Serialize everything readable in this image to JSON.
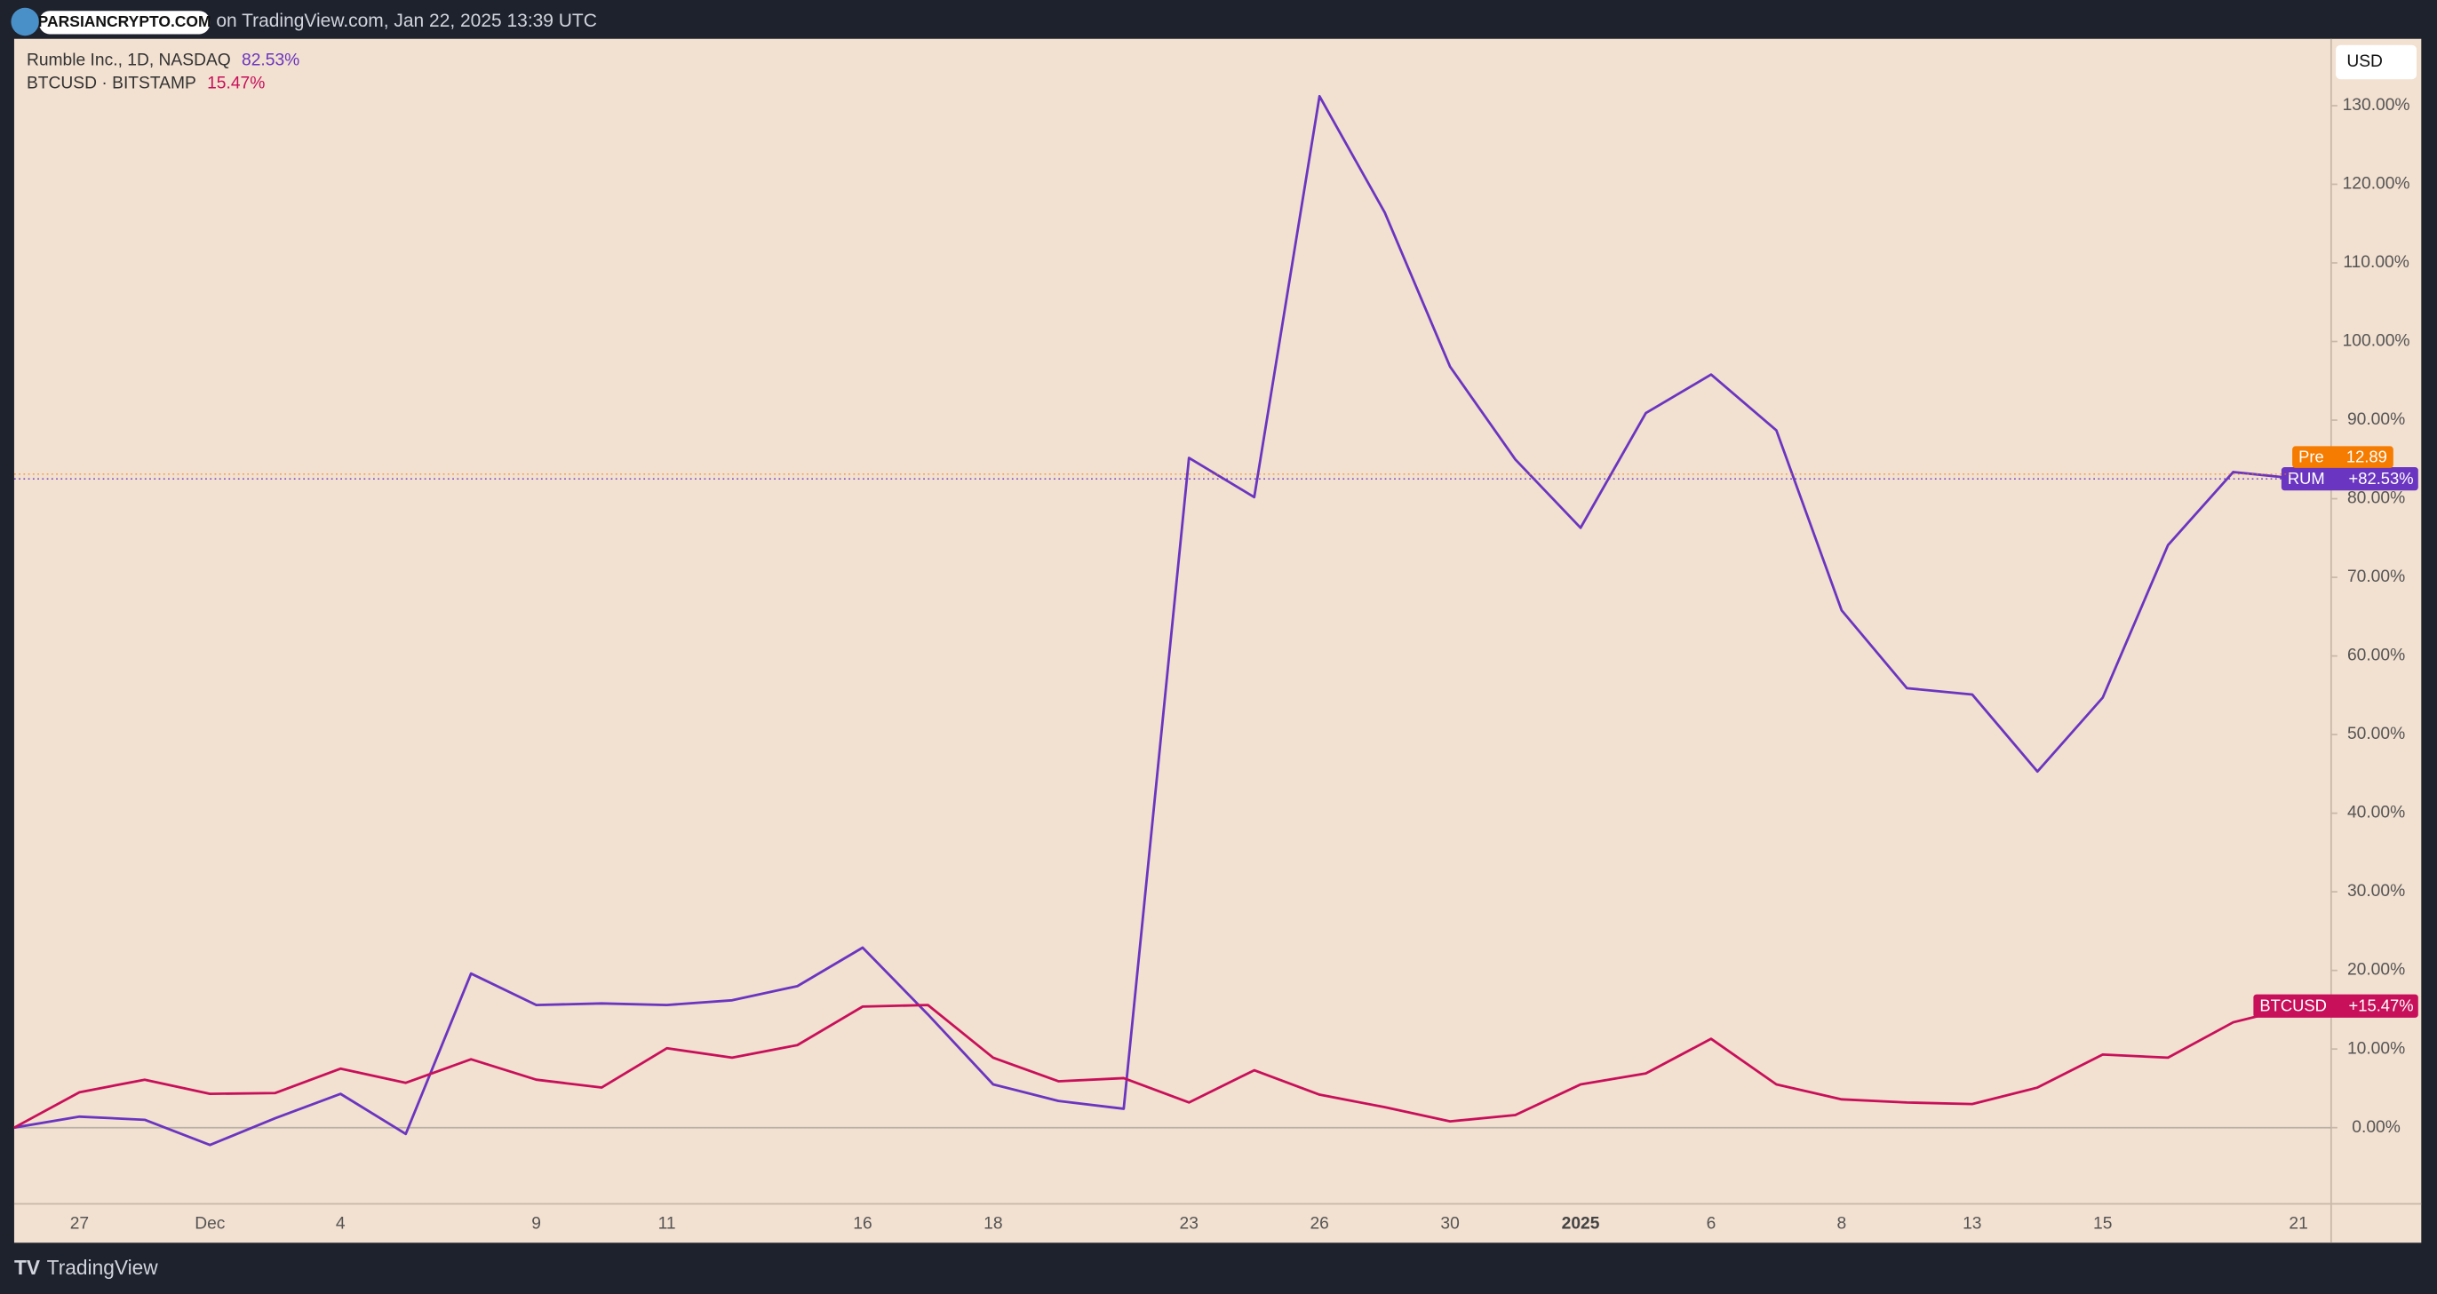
{
  "chart_data": {
    "type": "line",
    "watermark": "PARSIANCRYPTO.COM",
    "header": "on TradingView.com, Jan 22, 2025 13:39 UTC",
    "currency": "USD",
    "footer": "TradingView",
    "categories": [
      null,
      "27",
      null,
      "Dec",
      null,
      "4",
      null,
      null,
      "9",
      null,
      "11",
      null,
      null,
      "16",
      null,
      "18",
      null,
      null,
      "23",
      null,
      "26",
      null,
      "30",
      null,
      "2025",
      null,
      "6",
      null,
      "8",
      null,
      "13",
      null,
      "15",
      null,
      null,
      "21"
    ],
    "series": [
      {
        "name": "Rumble Inc., 1D, NASDAQ",
        "legend_value": "82.53%",
        "tag": "RUM",
        "tag_value": "+82.53%",
        "color": "#6a35c0",
        "values": [
          0,
          1.4,
          1,
          -2.2,
          1.2,
          4.3,
          -0.8,
          19.6,
          15.6,
          15.8,
          15.6,
          16.2,
          18,
          22.9,
          14.4,
          5.5,
          3.4,
          2.4,
          85.2,
          80.2,
          131.2,
          116.4,
          96.8,
          85,
          76.3,
          90.9,
          95.8,
          88.7,
          65.8,
          55.9,
          55.1,
          45.3,
          54.7,
          74.1,
          83.4,
          82.53
        ]
      },
      {
        "name": "BTCUSD · BITSTAMP",
        "legend_value": "15.47%",
        "tag": "BTCUSD",
        "tag_value": "+15.47%",
        "color": "#c8105a",
        "values": [
          0,
          4.5,
          6.1,
          4.3,
          4.4,
          7.5,
          5.7,
          8.7,
          6.1,
          5.1,
          10.1,
          8.9,
          10.5,
          15.4,
          15.6,
          8.9,
          5.9,
          6.3,
          3.2,
          7.3,
          4.2,
          2.6,
          0.8,
          1.6,
          5.5,
          6.9,
          11.3,
          5.5,
          3.6,
          3.2,
          3,
          5.1,
          9.3,
          8.9,
          13.4,
          15.47
        ]
      }
    ],
    "premarket": {
      "label": "Pre",
      "value": "12.89",
      "color": "#f57c00"
    },
    "ylim": [
      -9.7,
      138.5
    ],
    "yticks": [
      {
        "value": 0,
        "label": "0.00%"
      },
      {
        "value": 10,
        "label": "10.00%"
      },
      {
        "value": 20,
        "label": "20.00%"
      },
      {
        "value": 30,
        "label": "30.00%"
      },
      {
        "value": 40,
        "label": "40.00%"
      },
      {
        "value": 50,
        "label": "50.00%"
      },
      {
        "value": 60,
        "label": "60.00%"
      },
      {
        "value": 70,
        "label": "70.00%"
      },
      {
        "value": 80,
        "label": "80.00%"
      },
      {
        "value": 90,
        "label": "90.00%"
      },
      {
        "value": 100,
        "label": "100.00%"
      },
      {
        "value": 110,
        "label": "110.00%"
      },
      {
        "value": 120,
        "label": "120.00%"
      },
      {
        "value": 130,
        "label": "130.00%"
      }
    ]
  }
}
